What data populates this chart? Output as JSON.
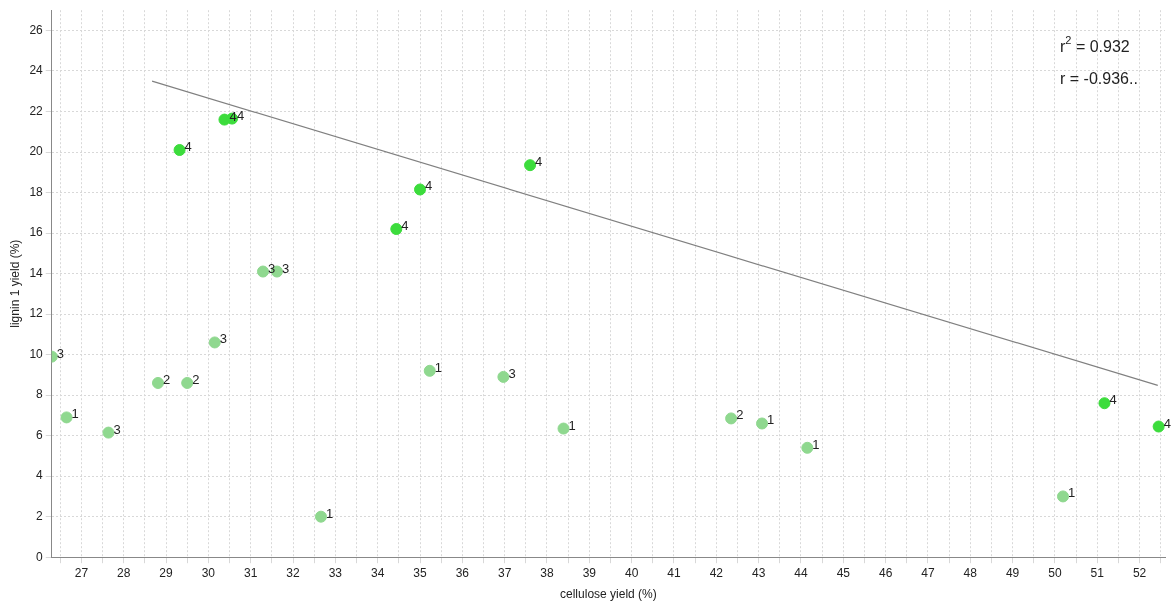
{
  "chart_data": {
    "type": "scatter",
    "xlabel": "cellulose yield (%)",
    "ylabel": "lignin 1 yield (%)",
    "xlim": [
      26.3,
      52.6
    ],
    "ylim": [
      0,
      27
    ],
    "xticks": [
      {
        "value": 26.5,
        "label": null
      },
      {
        "value": 27,
        "label": "27"
      },
      {
        "value": 27.5,
        "label": null
      },
      {
        "value": 28,
        "label": "28"
      },
      {
        "value": 28.5,
        "label": null
      },
      {
        "value": 29,
        "label": "29"
      },
      {
        "value": 29.5,
        "label": null
      },
      {
        "value": 30,
        "label": "30"
      },
      {
        "value": 30.5,
        "label": null
      },
      {
        "value": 31,
        "label": "31"
      },
      {
        "value": 31.5,
        "label": null
      },
      {
        "value": 32,
        "label": "32"
      },
      {
        "value": 32.5,
        "label": null
      },
      {
        "value": 33,
        "label": "33"
      },
      {
        "value": 33.5,
        "label": null
      },
      {
        "value": 34,
        "label": "34"
      },
      {
        "value": 34.5,
        "label": null
      },
      {
        "value": 35,
        "label": "35"
      },
      {
        "value": 35.5,
        "label": null
      },
      {
        "value": 36,
        "label": "36"
      },
      {
        "value": 36.5,
        "label": null
      },
      {
        "value": 37,
        "label": "37"
      },
      {
        "value": 37.5,
        "label": null
      },
      {
        "value": 38,
        "label": "38"
      },
      {
        "value": 38.5,
        "label": null
      },
      {
        "value": 39,
        "label": "39"
      },
      {
        "value": 39.5,
        "label": null
      },
      {
        "value": 40,
        "label": "40"
      },
      {
        "value": 40.5,
        "label": null
      },
      {
        "value": 41,
        "label": "41"
      },
      {
        "value": 41.5,
        "label": null
      },
      {
        "value": 42,
        "label": "42"
      },
      {
        "value": 42.5,
        "label": null
      },
      {
        "value": 43,
        "label": "43"
      },
      {
        "value": 43.5,
        "label": null
      },
      {
        "value": 44,
        "label": "44"
      },
      {
        "value": 44.5,
        "label": null
      },
      {
        "value": 45,
        "label": "45"
      },
      {
        "value": 45.5,
        "label": null
      },
      {
        "value": 46,
        "label": "46"
      },
      {
        "value": 46.5,
        "label": null
      },
      {
        "value": 47,
        "label": "47"
      },
      {
        "value": 47.5,
        "label": null
      },
      {
        "value": 48,
        "label": "48"
      },
      {
        "value": 48.5,
        "label": null
      },
      {
        "value": 49,
        "label": "49"
      },
      {
        "value": 49.5,
        "label": null
      },
      {
        "value": 50,
        "label": "50"
      },
      {
        "value": 50.5,
        "label": null
      },
      {
        "value": 51,
        "label": "51"
      },
      {
        "value": 51.5,
        "label": null
      },
      {
        "value": 52,
        "label": "52"
      },
      {
        "value": 52.5,
        "label": null
      }
    ],
    "yticks": [
      0,
      2,
      4,
      6,
      8,
      10,
      12,
      14,
      16,
      18,
      20,
      22,
      24,
      26
    ],
    "grid": true,
    "legend": false,
    "marker": "circle",
    "series": [
      {
        "color": "#8fd88f",
        "x": [
          26.3,
          26.65,
          27.64,
          28.81,
          29.5,
          30.15,
          31.29,
          31.62,
          32.66,
          35.23,
          36.97,
          38.39,
          42.35,
          43.08,
          44.15,
          50.19
        ],
        "values": [
          9.9,
          6.9,
          6.15,
          8.6,
          8.6,
          10.6,
          14.1,
          14.1,
          2.0,
          9.2,
          8.9,
          6.35,
          6.85,
          6.6,
          5.4,
          3.0
        ]
      },
      {
        "color": "#3cdc3c",
        "x": [
          29.32,
          30.38,
          30.56,
          34.44,
          35.0,
          37.6,
          51.17,
          52.45
        ],
        "values": [
          20.1,
          21.6,
          21.65,
          16.2,
          18.15,
          19.35,
          7.6,
          6.45
        ]
      },
      {
        "type": "line",
        "color": "#808080",
        "marker": "none",
        "x": [
          28.67,
          52.43
        ],
        "values": [
          23.5,
          8.48
        ]
      }
    ],
    "annotations": [
      {
        "text": "3",
        "x": 26.3,
        "y": 9.9
      },
      {
        "text": "1",
        "x": 26.65,
        "y": 6.9
      },
      {
        "text": "3",
        "x": 27.64,
        "y": 6.15
      },
      {
        "text": "2",
        "x": 28.81,
        "y": 8.6
      },
      {
        "text": "2",
        "x": 29.5,
        "y": 8.6
      },
      {
        "text": "3",
        "x": 30.15,
        "y": 10.6
      },
      {
        "text": "3",
        "x": 31.29,
        "y": 14.1
      },
      {
        "text": "3",
        "x": 31.62,
        "y": 14.1
      },
      {
        "text": "1",
        "x": 32.66,
        "y": 2.0
      },
      {
        "text": "1",
        "x": 35.23,
        "y": 9.2
      },
      {
        "text": "3",
        "x": 36.97,
        "y": 8.9
      },
      {
        "text": "1",
        "x": 38.39,
        "y": 6.35
      },
      {
        "text": "2",
        "x": 42.35,
        "y": 6.85
      },
      {
        "text": "1",
        "x": 43.08,
        "y": 6.6
      },
      {
        "text": "1",
        "x": 44.15,
        "y": 5.4
      },
      {
        "text": "1",
        "x": 50.19,
        "y": 3.0
      },
      {
        "text": "4",
        "x": 29.32,
        "y": 20.1
      },
      {
        "text": "4",
        "x": 30.38,
        "y": 21.6
      },
      {
        "text": "4",
        "x": 30.56,
        "y": 21.65
      },
      {
        "text": "4",
        "x": 34.44,
        "y": 16.2
      },
      {
        "text": "4",
        "x": 35.0,
        "y": 18.15
      },
      {
        "text": "4",
        "x": 37.6,
        "y": 19.35
      },
      {
        "text": "4",
        "x": 51.17,
        "y": 7.6
      },
      {
        "text": "4",
        "x": 52.45,
        "y": 6.45
      },
      "r$^{2}$ = 0.932",
      "r = -0.936.."
    ]
  }
}
